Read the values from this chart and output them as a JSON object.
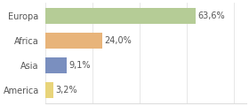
{
  "categories": [
    "Europa",
    "Africa",
    "Asia",
    "America"
  ],
  "values": [
    63.6,
    24.0,
    9.1,
    3.2
  ],
  "labels": [
    "63,6%",
    "24,0%",
    "9,1%",
    "3,2%"
  ],
  "bar_colors": [
    "#b5cc96",
    "#e8b47a",
    "#7a8fbf",
    "#e8d47a"
  ],
  "background_color": "#ffffff",
  "grid_color": "#dddddd",
  "text_color": "#555555",
  "figsize": [
    2.8,
    1.2
  ],
  "dpi": 100,
  "xlim": [
    0,
    85
  ],
  "bar_height": 0.65,
  "label_fontsize": 7.0,
  "tick_fontsize": 7.0
}
